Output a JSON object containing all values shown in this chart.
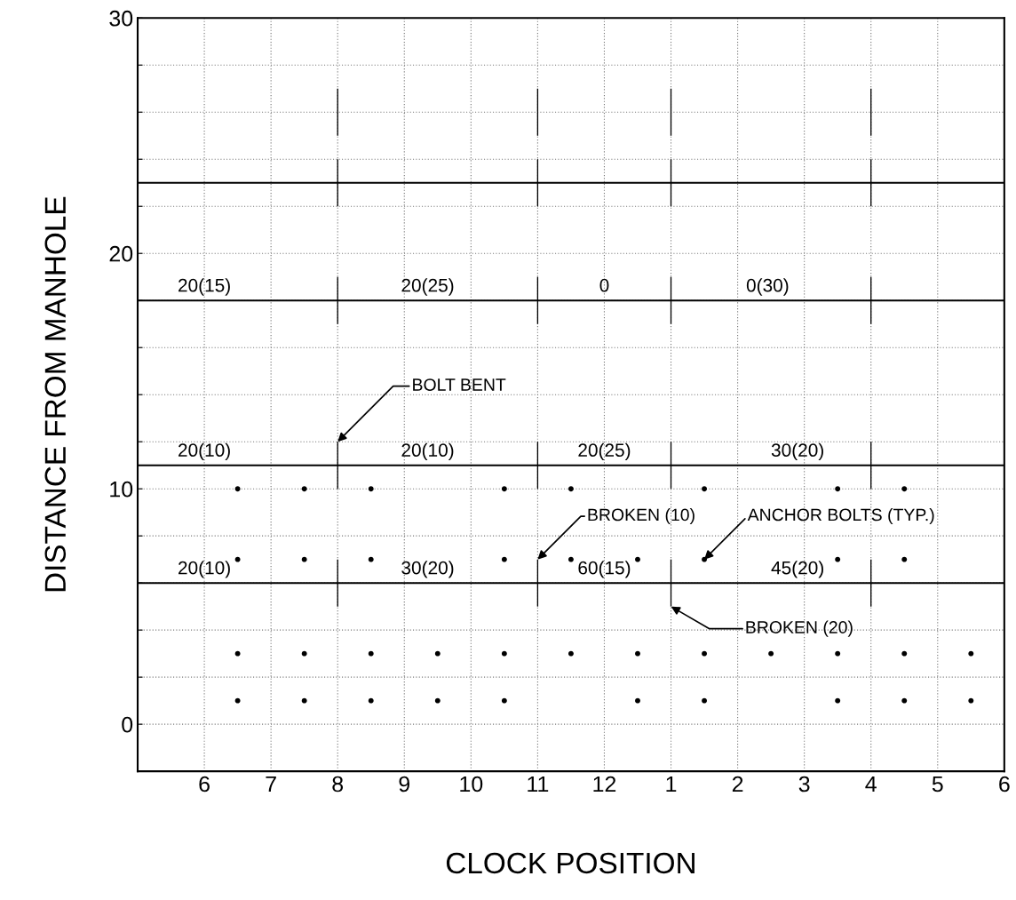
{
  "chart_data": {
    "type": "scatter",
    "xlabel": "CLOCK POSITION",
    "ylabel": "DISTANCE FROM MANHOLE",
    "categories": [
      null,
      null,
      "6",
      null,
      "7",
      null,
      "8",
      null,
      "9",
      null,
      "10",
      null,
      "11",
      null,
      "12",
      null,
      "1",
      null,
      "2",
      null,
      "3",
      null,
      "4",
      null,
      "5",
      null,
      "6"
    ],
    "ylim": [
      -2,
      30
    ],
    "yticks": [
      0,
      {
        "value": 2,
        "label": null
      },
      {
        "value": 4,
        "label": null
      },
      {
        "value": 6,
        "label": null
      },
      {
        "value": 8,
        "label": null
      },
      10,
      {
        "value": 12,
        "label": null
      },
      {
        "value": 14,
        "label": null
      },
      {
        "value": 16,
        "label": null
      },
      {
        "value": 18,
        "label": null
      },
      20,
      {
        "value": 22,
        "label": null
      },
      {
        "value": 24,
        "label": null
      },
      {
        "value": 26,
        "label": null
      },
      {
        "value": 28,
        "label": null
      },
      30
    ],
    "grid": true,
    "marker": "circle",
    "series": [
      {
        "color": "#000000",
        "values": [
          null,
          null,
          null,
          10,
          null,
          10,
          null,
          10,
          null,
          null,
          null,
          10,
          null,
          10,
          null,
          null,
          null,
          10,
          null,
          null,
          null,
          10,
          null,
          10,
          null,
          null,
          null
        ]
      },
      {
        "color": "#000000",
        "values": [
          null,
          null,
          null,
          7,
          null,
          7,
          null,
          7,
          null,
          null,
          null,
          7,
          null,
          7,
          null,
          7,
          null,
          7,
          null,
          null,
          null,
          7,
          null,
          7,
          null,
          null,
          null
        ]
      },
      {
        "color": "#000000",
        "values": [
          null,
          null,
          null,
          3,
          null,
          3,
          null,
          3,
          null,
          3,
          null,
          3,
          null,
          3,
          null,
          3,
          null,
          3,
          null,
          3,
          null,
          3,
          null,
          3,
          null,
          3,
          null
        ]
      },
      {
        "color": "#000000",
        "values": [
          null,
          null,
          null,
          1,
          null,
          1,
          null,
          1,
          null,
          1,
          null,
          1,
          null,
          null,
          null,
          1,
          null,
          1,
          null,
          null,
          null,
          1,
          null,
          1,
          null,
          1,
          null
        ]
      },
      {
        "type": "line",
        "color": "#000000",
        "marker": "none",
        "values": [
          23,
          23,
          23,
          23,
          23,
          23,
          23,
          23,
          23,
          23,
          23,
          23,
          23,
          23,
          23,
          23,
          23,
          23,
          23,
          23,
          23,
          23,
          23,
          23,
          23,
          23,
          23
        ]
      },
      {
        "type": "line",
        "color": "#000000",
        "marker": "none",
        "values": [
          18,
          18,
          18,
          18,
          18,
          18,
          18,
          18,
          18,
          18,
          18,
          18,
          18,
          18,
          18,
          18,
          18,
          18,
          18,
          18,
          18,
          18,
          18,
          18,
          18,
          18,
          18
        ]
      },
      {
        "type": "line",
        "color": "#000000",
        "marker": "none",
        "values": [
          11,
          11,
          11,
          11,
          11,
          11,
          11,
          11,
          11,
          11,
          11,
          11,
          11,
          11,
          11,
          11,
          11,
          11,
          11,
          11,
          11,
          11,
          11,
          11,
          11,
          11,
          11
        ]
      },
      {
        "type": "line",
        "color": "#000000",
        "marker": "none",
        "values": [
          6,
          6,
          6,
          6,
          6,
          6,
          6,
          6,
          6,
          6,
          6,
          6,
          6,
          6,
          6,
          6,
          6,
          6,
          6,
          6,
          6,
          6,
          6,
          6,
          6,
          6,
          6
        ]
      },
      {
        "type": "bar",
        "color": "#000000",
        "base": [
          null,
          null,
          null,
          null,
          null,
          null,
          25,
          null,
          null,
          null,
          null,
          null,
          25,
          null,
          null,
          null,
          25,
          null,
          null,
          null,
          null,
          null,
          25,
          null,
          null,
          null,
          null
        ],
        "values": [
          null,
          null,
          null,
          null,
          null,
          null,
          2,
          null,
          null,
          null,
          null,
          null,
          2,
          null,
          null,
          null,
          2,
          null,
          null,
          null,
          null,
          null,
          2,
          null,
          null,
          null,
          null
        ]
      },
      {
        "type": "bar",
        "color": "#000000",
        "base": [
          null,
          null,
          null,
          null,
          null,
          null,
          22,
          null,
          null,
          null,
          null,
          null,
          22,
          null,
          null,
          null,
          22,
          null,
          null,
          null,
          null,
          null,
          22,
          null,
          null,
          null,
          null
        ],
        "values": [
          null,
          null,
          null,
          null,
          null,
          null,
          2,
          null,
          null,
          null,
          null,
          null,
          2,
          null,
          null,
          null,
          2,
          null,
          null,
          null,
          null,
          null,
          2,
          null,
          null,
          null,
          null
        ]
      },
      {
        "type": "bar",
        "color": "#000000",
        "base": [
          null,
          null,
          null,
          null,
          null,
          null,
          17,
          null,
          null,
          null,
          null,
          null,
          17,
          null,
          null,
          null,
          17,
          null,
          null,
          null,
          null,
          null,
          17,
          null,
          null,
          null,
          null
        ],
        "values": [
          null,
          null,
          null,
          null,
          null,
          null,
          2,
          null,
          null,
          null,
          null,
          null,
          2,
          null,
          null,
          null,
          2,
          null,
          null,
          null,
          null,
          null,
          2,
          null,
          null,
          null,
          null
        ]
      },
      {
        "type": "bar",
        "color": "#000000",
        "base": [
          null,
          null,
          null,
          null,
          null,
          null,
          10,
          null,
          null,
          null,
          null,
          null,
          10,
          null,
          null,
          null,
          10,
          null,
          null,
          null,
          null,
          null,
          10,
          null,
          null,
          null,
          null
        ],
        "values": [
          null,
          null,
          null,
          null,
          null,
          null,
          2,
          null,
          null,
          null,
          null,
          null,
          2,
          null,
          null,
          null,
          2,
          null,
          null,
          null,
          null,
          null,
          2,
          null,
          null,
          null,
          null
        ]
      },
      {
        "type": "bar",
        "color": "#000000",
        "base": [
          null,
          null,
          null,
          null,
          null,
          null,
          5,
          null,
          null,
          null,
          null,
          null,
          5,
          null,
          null,
          null,
          5,
          null,
          null,
          null,
          null,
          null,
          5,
          null,
          null,
          null,
          null
        ],
        "values": [
          null,
          null,
          null,
          null,
          null,
          null,
          2,
          null,
          null,
          null,
          null,
          null,
          2,
          null,
          null,
          null,
          2,
          null,
          null,
          null,
          null,
          null,
          2,
          null,
          null,
          null,
          null
        ]
      }
    ],
    "annotations": [
      {
        "text": "20(15)",
        "x": "6",
        "y": 18
      },
      {
        "text": "20(25)",
        "y": 18
      },
      {
        "text": "0",
        "x": "12",
        "y": 18
      },
      {
        "text": "0(30)",
        "y": 18
      },
      {
        "text": "20(10)",
        "x": "6",
        "y": 11
      },
      {
        "text": "20(10)",
        "y": 11
      },
      {
        "text": "20(25)",
        "x": "12",
        "y": 11
      },
      {
        "text": "30(20)",
        "y": 11
      },
      {
        "text": "20(10)",
        "x": "6",
        "y": 6
      },
      {
        "text": "30(20)",
        "y": 6
      },
      {
        "text": "60(15)",
        "x": "12",
        "y": 6
      },
      {
        "text": "45(20)",
        "y": 6
      },
      {
        "text": "BOLT BENT",
        "x": "8",
        "y": 12
      },
      {
        "text": "BROKEN (10)",
        "x": "11",
        "y": 7
      },
      {
        "text": "ANCHOR BOLTS (TYP.)",
        "y": 7
      },
      {
        "text": "BROKEN (20)",
        "x": "1",
        "y": 5
      }
    ]
  }
}
